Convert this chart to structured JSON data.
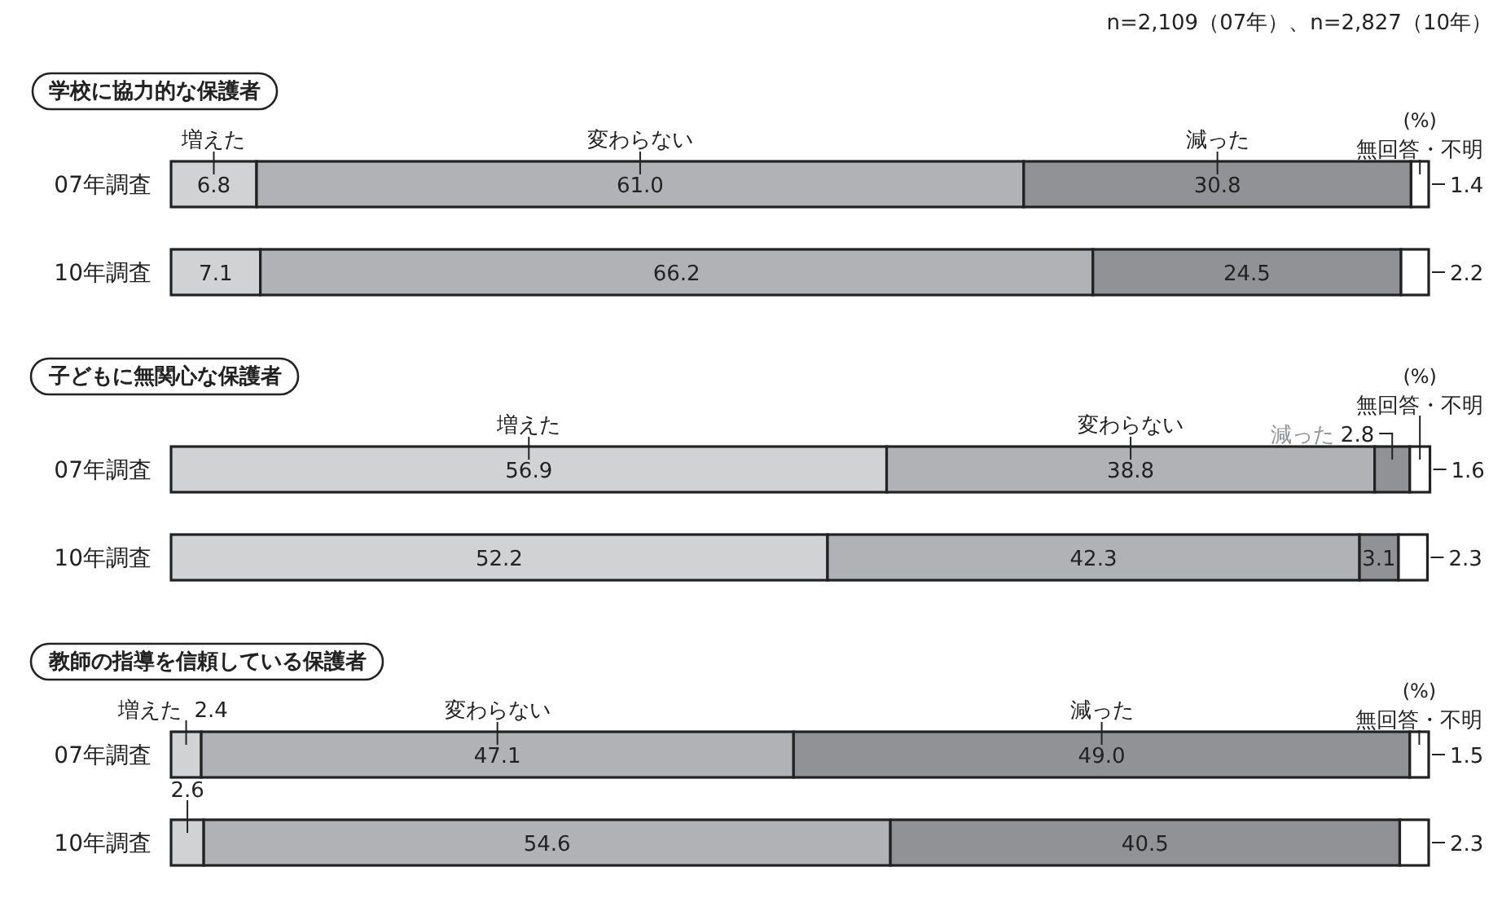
{
  "chart_data": [
    {
      "type": "bar",
      "orientation": "horizontal",
      "stacked": true,
      "tick_labels": "y",
      "xlim": [
        0,
        100
      ],
      "title": "学校に協力的な保護者",
      "subtitle": "n=2,109（07年）、n=2,827（10年）",
      "annotations": [
        "(%)"
      ],
      "categories": [
        "07年調査",
        "10年調査"
      ],
      "series": [
        {
          "name": "増えた",
          "color": "#d1d2d4",
          "values": [
            6.8,
            7.1
          ],
          "value_labels": [
            "6.8",
            "7.1"
          ]
        },
        {
          "name": "変わらない",
          "color": "#b1b2b5",
          "values": [
            61.0,
            66.2
          ],
          "value_labels": [
            "61.0",
            "66.2"
          ]
        },
        {
          "name": "減った",
          "color": "#919295",
          "values": [
            30.8,
            24.5
          ],
          "value_labels": [
            "30.8",
            "24.5"
          ]
        },
        {
          "name": "無回答・不明",
          "color": "#ffffff",
          "values": [
            1.4,
            2.2
          ],
          "value_labels": [
            "1.4",
            "2.2"
          ]
        }
      ]
    },
    {
      "type": "bar",
      "orientation": "horizontal",
      "stacked": true,
      "tick_labels": "y",
      "xlim": [
        0,
        100
      ],
      "title": "子どもに無関心な保護者",
      "annotations": [
        "(%)"
      ],
      "categories": [
        "07年調査",
        "10年調査"
      ],
      "series": [
        {
          "name": "増えた",
          "color": "#d1d2d4",
          "values": [
            56.9,
            52.2
          ],
          "value_labels": [
            "56.9",
            "52.2"
          ]
        },
        {
          "name": "変わらない",
          "color": "#b1b2b5",
          "values": [
            38.8,
            42.3
          ],
          "value_labels": [
            "38.8",
            "42.3"
          ]
        },
        {
          "name": "減った",
          "color": "#919295",
          "values": [
            2.8,
            3.1
          ],
          "value_labels": [
            "2.8",
            "3.1"
          ]
        },
        {
          "name": "無回答・不明",
          "color": "#ffffff",
          "values": [
            1.6,
            2.3
          ],
          "value_labels": [
            "1.6",
            "2.3"
          ]
        }
      ]
    },
    {
      "type": "bar",
      "orientation": "horizontal",
      "stacked": true,
      "tick_labels": "y",
      "xlim": [
        0,
        100
      ],
      "title": "教師の指導を信頼している保護者",
      "annotations": [
        "(%)"
      ],
      "categories": [
        "07年調査",
        "10年調査"
      ],
      "series": [
        {
          "name": "増えた",
          "color": "#d1d2d4",
          "values": [
            2.4,
            2.6
          ],
          "value_labels": [
            "2.4",
            "2.6"
          ]
        },
        {
          "name": "変わらない",
          "color": "#b1b2b5",
          "values": [
            47.1,
            54.6
          ],
          "value_labels": [
            "47.1",
            "54.6"
          ]
        },
        {
          "name": "減った",
          "color": "#919295",
          "values": [
            49.0,
            40.5
          ],
          "value_labels": [
            "49.0",
            "40.5"
          ]
        },
        {
          "name": "無回答・不明",
          "color": "#ffffff",
          "values": [
            1.5,
            2.3
          ],
          "value_labels": [
            "1.5",
            "2.3"
          ]
        }
      ]
    }
  ]
}
